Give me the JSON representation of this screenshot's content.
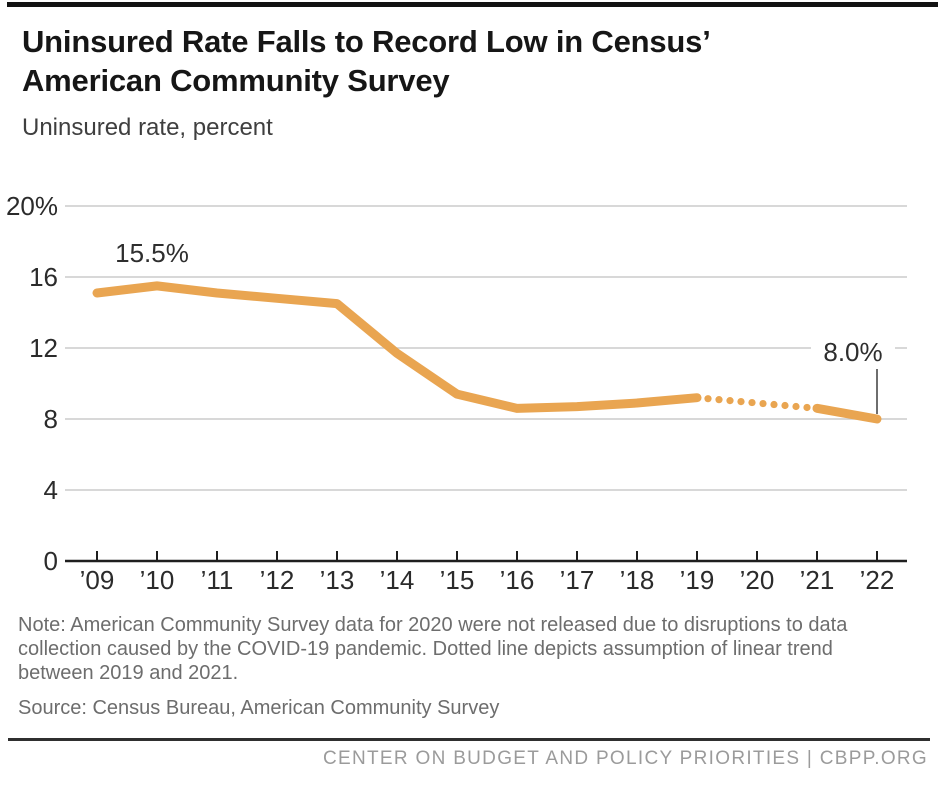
{
  "page": {
    "title_line1": "Uninsured Rate Falls to Record Low in Census’",
    "title_line2": "American Community Survey",
    "subtitle": "Uninsured rate, percent",
    "note": "Note: American Community Survey data for 2020 were not released due to disruptions to data collection caused by the COVID-19 pandemic. Dotted line depicts assumption of linear trend between 2019 and 2021.",
    "source": "Source: Census Bureau, American Community Survey",
    "footer": "CENTER ON BUDGET AND POLICY PRIORITIES | CBPP.ORG"
  },
  "chart_data": {
    "type": "line",
    "title": "Uninsured Rate Falls to Record Low in Census’ American Community Survey",
    "subtitle": "Uninsured rate, percent",
    "xlabel": "",
    "ylabel": "Uninsured rate, percent",
    "categories": [
      "’09",
      "’10",
      "’11",
      "’12",
      "’13",
      "’14",
      "’15",
      "’16",
      "’17",
      "’18",
      "’19",
      "’20",
      "’21",
      "’22"
    ],
    "values": [
      15.1,
      15.5,
      15.1,
      14.8,
      14.5,
      11.7,
      9.4,
      8.6,
      8.7,
      8.9,
      9.2,
      null,
      8.6,
      8.0
    ],
    "missing_data_category": "’20",
    "dotted_segment_between": [
      "’19",
      "’21"
    ],
    "annotations": [
      {
        "text": "15.5%",
        "category": "’10",
        "value": 15.5
      },
      {
        "text": "8.0%",
        "category": "’22",
        "value": 8.0
      }
    ],
    "ylim": [
      0,
      20
    ],
    "yticks": [
      0,
      4,
      8,
      12,
      16,
      20
    ],
    "ytick_labels": [
      "0",
      "4",
      "8",
      "12",
      "16",
      "20%"
    ],
    "grid": true,
    "legend": "none",
    "line_color": "#E9A551",
    "grid_color": "#cbcbcb",
    "axis_color": "#1f1f1f",
    "label_color": "#2b2b2b"
  }
}
